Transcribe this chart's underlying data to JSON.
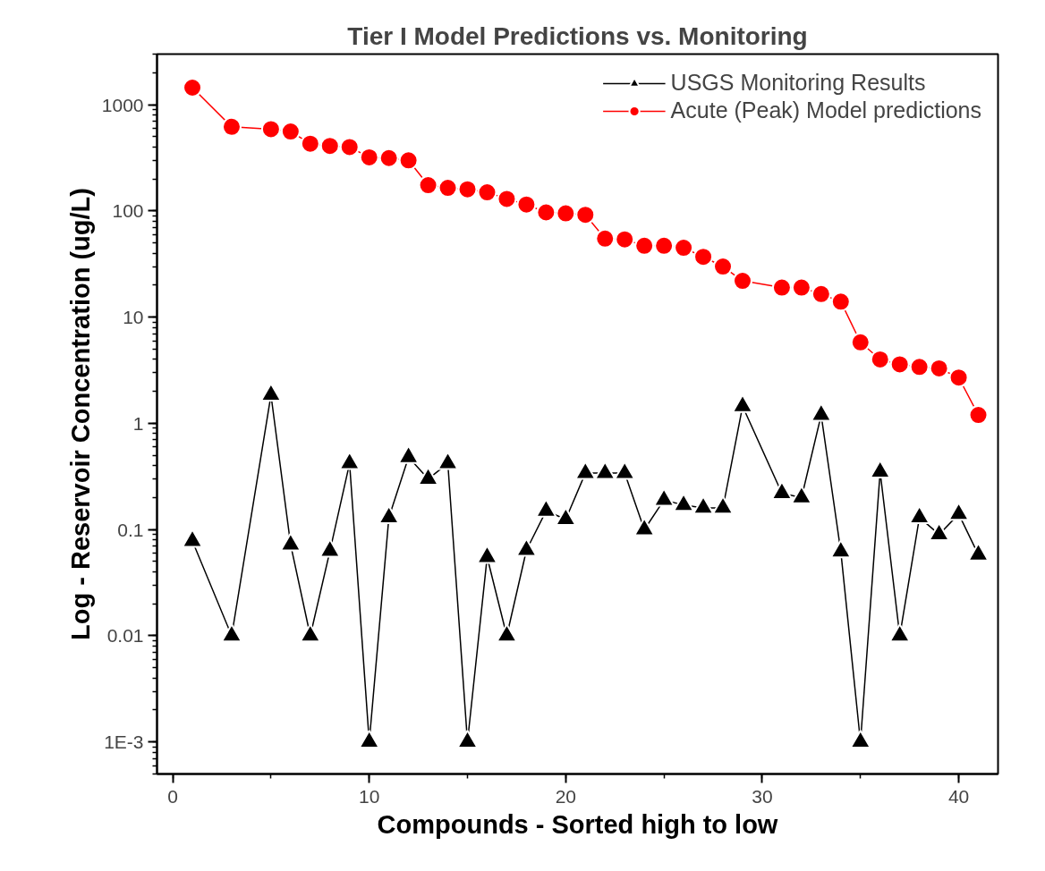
{
  "chart_data": {
    "type": "line",
    "title": "Tier I Model Predictions vs. Monitoring",
    "xlabel": "Compounds - Sorted high to low",
    "ylabel": "Log - Reservoir Concentration (ug/L)",
    "x": [
      1,
      3,
      5,
      6,
      7,
      8,
      9,
      10,
      11,
      12,
      13,
      14,
      15,
      16,
      17,
      18,
      19,
      20,
      21,
      22,
      23,
      24,
      25,
      26,
      27,
      28,
      29,
      31,
      32,
      33,
      34,
      35,
      36,
      37,
      38,
      39,
      40,
      41
    ],
    "series": [
      {
        "name": "USGS Monitoring Results",
        "color": "#000000",
        "marker": "triangle",
        "values": [
          0.078,
          0.01,
          1.85,
          0.072,
          0.01,
          0.063,
          0.42,
          0.001,
          0.13,
          0.48,
          0.3,
          0.42,
          0.001,
          0.055,
          0.01,
          0.064,
          0.15,
          0.125,
          0.34,
          0.34,
          0.34,
          0.1,
          0.19,
          0.17,
          0.16,
          0.16,
          1.45,
          0.22,
          0.2,
          1.2,
          0.062,
          0.001,
          0.35,
          0.01,
          0.13,
          0.09,
          0.14,
          0.058
        ]
      },
      {
        "name": "Acute (Peak) Model predictions",
        "color": "#ff0000",
        "marker": "circle",
        "values": [
          1450,
          620,
          590,
          560,
          430,
          410,
          400,
          320,
          315,
          300,
          175,
          165,
          160,
          150,
          130,
          115,
          97,
          95,
          92,
          55,
          54,
          47,
          47,
          45,
          37,
          30,
          22,
          19,
          19,
          16.5,
          14,
          5.8,
          4,
          3.6,
          3.4,
          3.3,
          2.7,
          1.2
        ]
      }
    ],
    "log": "y",
    "xlim": [
      -0.8,
      42
    ],
    "xticks": [
      0,
      10,
      20,
      30,
      40
    ],
    "ylim": [
      0.0005,
      3000
    ],
    "yticks": [
      {
        "value": 0.001,
        "label": "1E-3"
      },
      0.01,
      0.1,
      1,
      10,
      100,
      1000
    ],
    "grid": false,
    "legend": "top right"
  }
}
